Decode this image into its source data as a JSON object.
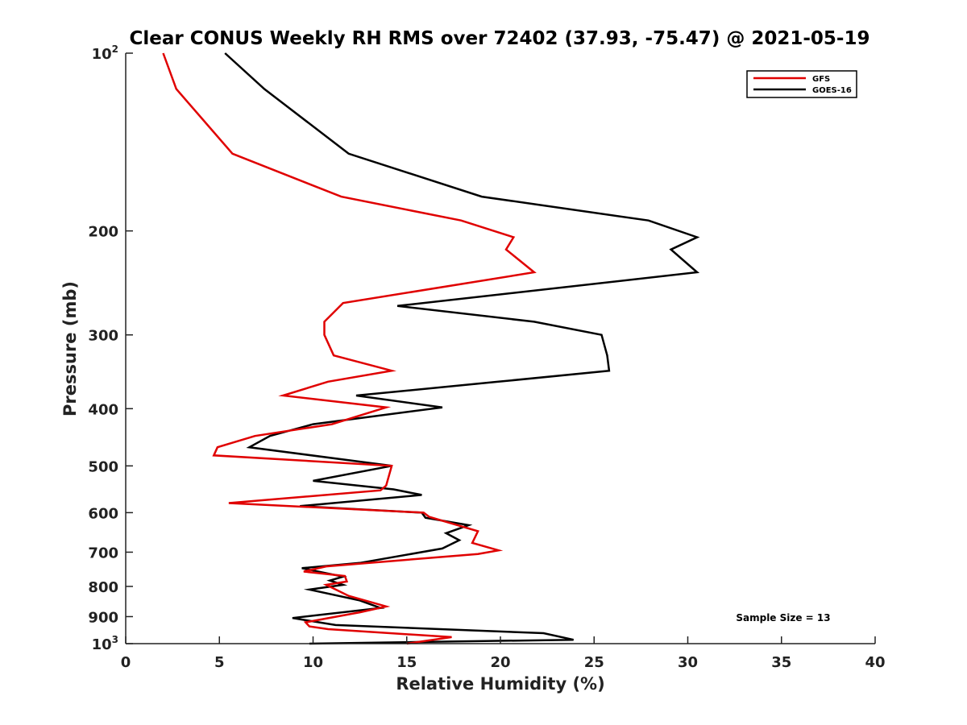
{
  "chart_data": {
    "type": "line",
    "title": "Clear CONUS Weekly RH RMS over 72402 (37.93, -75.47) @ 2021-05-19",
    "xlabel": "Relative Humidity (%)",
    "ylabel": "Pressure (mb)",
    "xlim": [
      0,
      40
    ],
    "ylim": [
      100,
      1000
    ],
    "yscale": "log",
    "y_reversed": true,
    "grid": false,
    "legend_position": "top-right",
    "x_ticks": [
      0,
      5,
      10,
      15,
      20,
      25,
      30,
      35,
      40
    ],
    "x_tick_labels": [
      "0",
      "5",
      "10",
      "15",
      "20",
      "25",
      "30",
      "35",
      "40"
    ],
    "y_ticks": [
      {
        "value": 100,
        "base": "10",
        "exp": "2",
        "label": ""
      },
      {
        "value": 200,
        "base": "",
        "exp": "",
        "label": "200"
      },
      {
        "value": 300,
        "base": "",
        "exp": "",
        "label": "300"
      },
      {
        "value": 400,
        "base": "",
        "exp": "",
        "label": "400"
      },
      {
        "value": 500,
        "base": "",
        "exp": "",
        "label": "500"
      },
      {
        "value": 600,
        "base": "",
        "exp": "",
        "label": "600"
      },
      {
        "value": 700,
        "base": "",
        "exp": "",
        "label": "700"
      },
      {
        "value": 800,
        "base": "",
        "exp": "",
        "label": "800"
      },
      {
        "value": 900,
        "base": "",
        "exp": "",
        "label": "900"
      },
      {
        "value": 1000,
        "base": "10",
        "exp": "3",
        "label": ""
      }
    ],
    "annotation": "Sample Size = 13",
    "series": [
      {
        "name": "GFS",
        "color": "#e00000",
        "x": [
          2.0,
          2.7,
          5.7,
          11.5,
          17.9,
          20.7,
          20.3,
          21.8,
          11.6,
          10.6,
          10.6,
          11.1,
          14.2,
          10.8,
          8.4,
          13.9,
          11.0,
          6.9,
          4.9,
          4.7,
          14.2,
          13.9,
          13.6,
          5.5,
          15.9,
          16.2,
          18.8,
          18.5,
          19.9,
          18.8,
          10.7,
          9.5,
          11.7,
          11.8,
          10.7,
          11.9,
          13.9,
          12.5,
          9.6,
          9.8,
          10.8,
          17.4,
          15.0
        ],
        "y": [
          100,
          115,
          148,
          175,
          192,
          205,
          215,
          235,
          265,
          285,
          300,
          325,
          345,
          360,
          380,
          398,
          425,
          445,
          465,
          480,
          500,
          540,
          550,
          578,
          600,
          610,
          645,
          675,
          695,
          705,
          740,
          755,
          768,
          785,
          795,
          830,
          865,
          885,
          920,
          935,
          945,
          975,
          1000
        ]
      },
      {
        "name": "GOES-16",
        "color": "#000000",
        "x": [
          5.3,
          7.4,
          11.9,
          19.0,
          27.9,
          30.5,
          29.1,
          30.5,
          14.5,
          21.8,
          25.4,
          25.7,
          25.8,
          19.9,
          12.3,
          16.9,
          10.0,
          7.7,
          6.6,
          14.2,
          10.0,
          14.3,
          15.8,
          9.3,
          15.8,
          16.0,
          18.3,
          17.1,
          17.8,
          16.9,
          12.5,
          9.4,
          11.6,
          10.9,
          11.6,
          9.8,
          12.5,
          13.6,
          8.9,
          11.2,
          22.3,
          23.9,
          9.8
        ],
        "y": [
          100,
          115,
          148,
          175,
          192,
          205,
          215,
          235,
          268,
          285,
          300,
          325,
          345,
          360,
          380,
          398,
          425,
          445,
          465,
          500,
          530,
          548,
          560,
          585,
          600,
          612,
          630,
          650,
          668,
          690,
          730,
          745,
          770,
          782,
          795,
          810,
          845,
          870,
          905,
          930,
          960,
          985,
          1000
        ]
      }
    ]
  }
}
